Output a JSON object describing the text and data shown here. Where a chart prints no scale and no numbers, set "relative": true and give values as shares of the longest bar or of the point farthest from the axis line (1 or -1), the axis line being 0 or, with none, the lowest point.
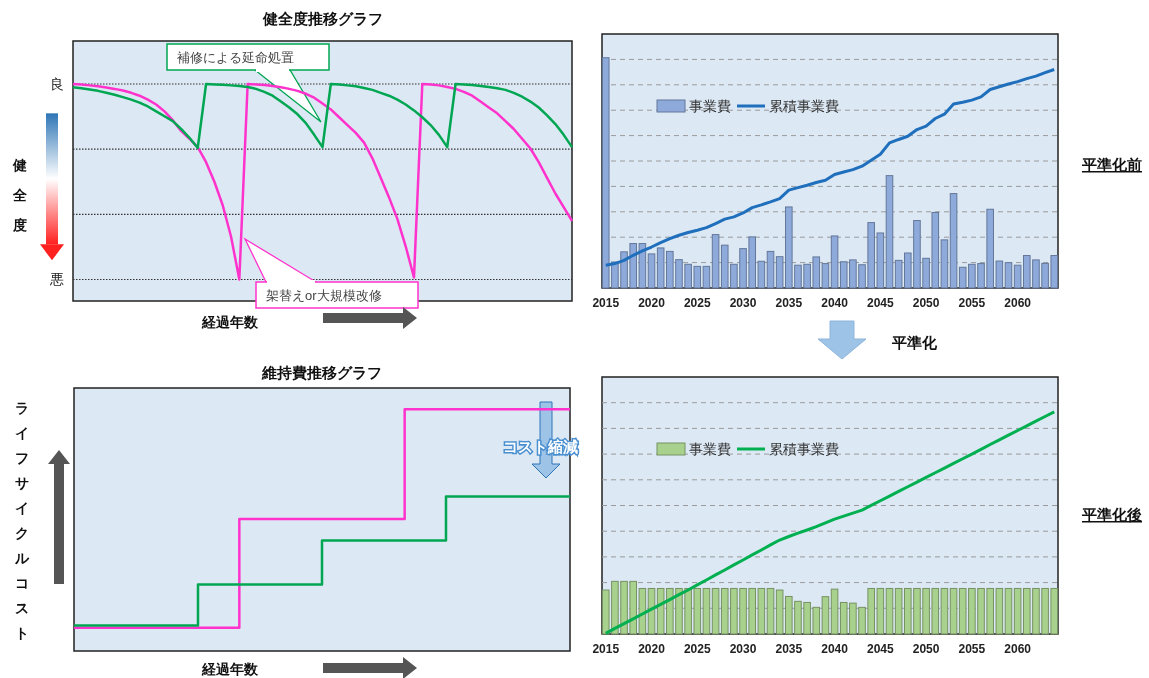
{
  "chart_data": [
    {
      "type": "line",
      "title": "健全度推移グラフ",
      "xlabel": "経過年数",
      "ylabel": "健全度",
      "relative": true,
      "ref_lines": [
        {
          "axis": "y",
          "value": 1,
          "label": "良"
        },
        {
          "axis": "y",
          "value": 0.667,
          "label": null
        },
        {
          "axis": "y",
          "value": 0.333,
          "label": null
        },
        {
          "axis": "y",
          "value": 0,
          "label": "悪"
        }
      ],
      "categories": [
        null,
        null,
        null,
        null,
        null,
        null,
        null,
        null,
        null,
        null,
        null,
        null,
        null,
        null,
        null,
        null,
        null,
        null,
        null,
        null,
        null,
        null,
        null,
        null,
        null,
        null,
        null,
        null,
        null,
        null,
        null,
        null,
        null,
        null,
        null,
        null,
        null,
        null,
        null,
        null,
        null,
        null,
        null,
        null,
        null,
        null,
        null,
        null,
        null,
        null,
        null,
        null,
        null,
        null,
        null,
        null,
        null,
        null,
        null,
        null,
        null
      ],
      "series": [
        {
          "color": "#ff33cc",
          "values": [
            1,
            0.997,
            0.993,
            0.988,
            0.982,
            0.975,
            0.967,
            0.955,
            0.94,
            0.92,
            0.895,
            0.86,
            0.815,
            0.76,
            0.72,
            0.677,
            0.6,
            0.5,
            0.38,
            0.22,
            0,
            1,
            0.998,
            0.995,
            0.99,
            0.983,
            0.975,
            0.965,
            0.95,
            0.93,
            0.9,
            0.87,
            0.83,
            0.79,
            0.75,
            0.7,
            0.62,
            0.52,
            0.42,
            0.31,
            0.17,
            0.01,
            1,
            0.998,
            0.993,
            0.985,
            0.975,
            0.96,
            0.94,
            0.91,
            0.88,
            0.85,
            0.81,
            0.77,
            0.72,
            0.67,
            0.6,
            0.52,
            0.44,
            0.37,
            0.3
          ]
        },
        {
          "color": "#00a651",
          "values": [
            0.983,
            0.978,
            0.972,
            0.965,
            0.955,
            0.945,
            0.933,
            0.92,
            0.905,
            0.885,
            0.86,
            0.835,
            0.81,
            0.77,
            0.725,
            0.673,
            1,
            0.998,
            0.996,
            0.993,
            0.99,
            0.985,
            0.975,
            0.96,
            0.94,
            0.91,
            0.88,
            0.845,
            0.8,
            0.74,
            0.677,
            1,
            0.997,
            0.993,
            0.988,
            0.98,
            0.97,
            0.955,
            0.94,
            0.92,
            0.895,
            0.865,
            0.83,
            0.79,
            0.74,
            0.677,
            1,
            0.998,
            0.995,
            0.99,
            0.985,
            0.978,
            0.97,
            0.955,
            0.935,
            0.91,
            0.88,
            0.84,
            0.795,
            0.74,
            0.677
          ]
        }
      ],
      "annotations": [
        "補修による延命処置",
        "架替えor大規模改修"
      ]
    },
    {
      "type": "step",
      "title": "維持費推移グラフ",
      "xlabel": "経過年数",
      "ylabel": "ライフサイクルコスト",
      "relative": true,
      "categories": [
        null,
        null,
        null,
        null,
        null,
        null,
        null,
        null,
        null,
        null,
        null,
        null,
        null
      ],
      "series": [
        {
          "color": "#ff33cc",
          "values": [
            0.096,
            0.096,
            0.096,
            0.096,
            0.546,
            0.546,
            0.546,
            0.546,
            1,
            1,
            1,
            1,
            1
          ]
        },
        {
          "color": "#00a651",
          "values": [
            0.105,
            0.105,
            0.105,
            0.275,
            0.275,
            0.275,
            0.457,
            0.457,
            0.457,
            0.639,
            0.639,
            0.639,
            0.639
          ]
        }
      ],
      "annotations": [
        "コスト縮減"
      ]
    },
    {
      "type": "bar",
      "relative": true,
      "grid": "y",
      "legend": "top left",
      "categories": [
        "2015",
        null,
        null,
        null,
        null,
        "2020",
        null,
        null,
        null,
        null,
        "2025",
        null,
        null,
        null,
        null,
        "2030",
        null,
        null,
        null,
        null,
        "2035",
        null,
        null,
        null,
        null,
        "2040",
        null,
        null,
        null,
        null,
        "2045",
        null,
        null,
        null,
        null,
        "2050",
        null,
        null,
        null,
        null,
        "2055",
        null,
        null,
        null,
        null,
        "2060",
        null,
        null,
        null,
        null
      ],
      "series": [
        {
          "name": "事業費",
          "color": "#8eaadb",
          "values": [
            1,
            0.113,
            0.157,
            0.193,
            0.193,
            0.148,
            0.174,
            0.159,
            0.123,
            0.103,
            0.094,
            0.094,
            0.232,
            0.186,
            0.103,
            0.171,
            0.222,
            0.116,
            0.159,
            0.136,
            0.352,
            0.099,
            0.103,
            0.135,
            0.106,
            0.226,
            0.114,
            0.122,
            0.101,
            0.284,
            0.239,
            0.488,
            0.12,
            0.152,
            0.293,
            0.129,
            0.328,
            0.209,
            0.41,
            0.09,
            0.103,
            0.106,
            0.342,
            0.117,
            0.11,
            0.099,
            0.141,
            0.122,
            0.107,
            0.141
          ]
        },
        {
          "name": "累積事業費",
          "type": "line",
          "color": "#1f6fbd",
          "values": [
            0.099,
            0.106,
            0.12,
            0.142,
            0.161,
            0.178,
            0.197,
            0.214,
            0.229,
            0.241,
            0.251,
            0.262,
            0.28,
            0.299,
            0.309,
            0.326,
            0.349,
            0.361,
            0.374,
            0.388,
            0.425,
            0.436,
            0.446,
            0.458,
            0.468,
            0.493,
            0.504,
            0.514,
            0.529,
            0.555,
            0.581,
            0.63,
            0.645,
            0.659,
            0.688,
            0.703,
            0.736,
            0.755,
            0.799,
            0.807,
            0.816,
            0.83,
            0.862,
            0.874,
            0.886,
            0.896,
            0.909,
            0.92,
            0.935,
            0.949
          ]
        }
      ],
      "annotations": [
        "平準化前"
      ]
    },
    {
      "type": "bar",
      "relative": true,
      "grid": "y",
      "legend": "top left",
      "categories": [
        "2015",
        null,
        null,
        null,
        null,
        "2020",
        null,
        null,
        null,
        null,
        "2025",
        null,
        null,
        null,
        null,
        "2030",
        null,
        null,
        null,
        null,
        "2035",
        null,
        null,
        null,
        null,
        "2040",
        null,
        null,
        null,
        null,
        "2045",
        null,
        null,
        null,
        null,
        "2050",
        null,
        null,
        null,
        null,
        "2055",
        null,
        null,
        null,
        null,
        "2060",
        null,
        null,
        null,
        null
      ],
      "series": [
        {
          "name": "事業費",
          "color": "#a9d18e",
          "values": [
            0.198,
            0.237,
            0.237,
            0.237,
            0.205,
            0.205,
            0.205,
            0.205,
            0.205,
            0.205,
            0.205,
            0.205,
            0.205,
            0.205,
            0.205,
            0.205,
            0.205,
            0.205,
            0.205,
            0.198,
            0.169,
            0.147,
            0.142,
            0.12,
            0.168,
            0.202,
            0.142,
            0.139,
            0.12,
            0.205,
            0.205,
            0.205,
            0.205,
            0.205,
            0.205,
            0.205,
            0.205,
            0.205,
            0.205,
            0.205,
            0.205,
            0.205,
            0.205,
            0.205,
            0.205,
            0.205,
            0.205,
            0.205,
            0.205,
            0.205
          ]
        },
        {
          "name": "累積事業費",
          "type": "line",
          "color": "#00b050",
          "values": [
            0.003,
            0.025,
            0.047,
            0.068,
            0.09,
            0.112,
            0.133,
            0.155,
            0.177,
            0.198,
            0.221,
            0.243,
            0.266,
            0.288,
            0.311,
            0.333,
            0.356,
            0.378,
            0.401,
            0.423,
            0.439,
            0.454,
            0.468,
            0.483,
            0.5,
            0.517,
            0.531,
            0.544,
            0.558,
            0.579,
            0.6,
            0.621,
            0.642,
            0.663,
            0.684,
            0.705,
            0.726,
            0.747,
            0.768,
            0.789,
            0.81,
            0.831,
            0.853,
            0.874,
            0.895,
            0.916,
            0.937,
            0.958,
            0.979,
            1
          ]
        }
      ],
      "annotations": [
        "平準化",
        "平準化後"
      ]
    }
  ]
}
